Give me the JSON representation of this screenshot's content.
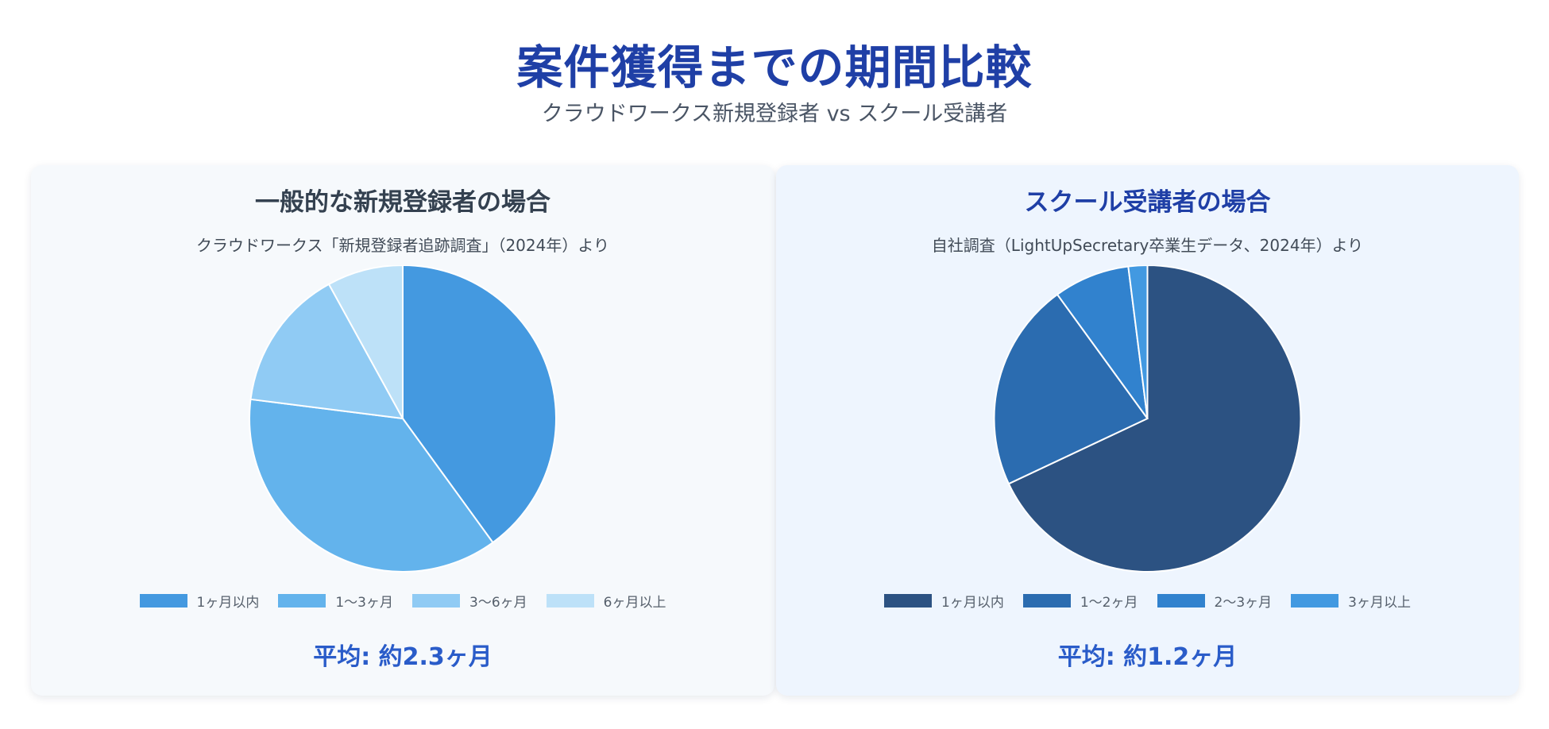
{
  "header": {
    "title": "案件獲得までの期間比較",
    "subtitle": "クラウドワークス新規登録者 vs スクール受講者"
  },
  "cards": [
    {
      "title": "一般的な新規登録者の場合",
      "source": "クラウドワークス「新規登録者追跡調査」（2024年）より",
      "average": "平均: 約2.3ヶ月"
    },
    {
      "title": "スクール受講者の場合",
      "source": "自社調査（LightUpSecretary卒業生データ、2024年）より",
      "average": "平均: 約1.2ヶ月"
    }
  ],
  "chart_data": [
    {
      "type": "pie",
      "title": "一般的な新規登録者の場合",
      "categories": [
        "1ヶ月以内",
        "1〜3ヶ月",
        "3〜6ヶ月",
        "6ヶ月以上"
      ],
      "values": [
        40,
        37,
        15,
        8
      ],
      "colors": [
        "#4499e0",
        "#63b3ec",
        "#90cbf4",
        "#bde1f8"
      ],
      "legend_position": "bottom"
    },
    {
      "type": "pie",
      "title": "スクール受講者の場合",
      "categories": [
        "1ヶ月以内",
        "1〜2ヶ月",
        "2〜3ヶ月",
        "3ヶ月以上"
      ],
      "values": [
        68,
        22,
        8,
        2
      ],
      "colors": [
        "#2c5282",
        "#2b6cb0",
        "#3182ce",
        "#4299e1"
      ],
      "legend_position": "bottom"
    }
  ]
}
